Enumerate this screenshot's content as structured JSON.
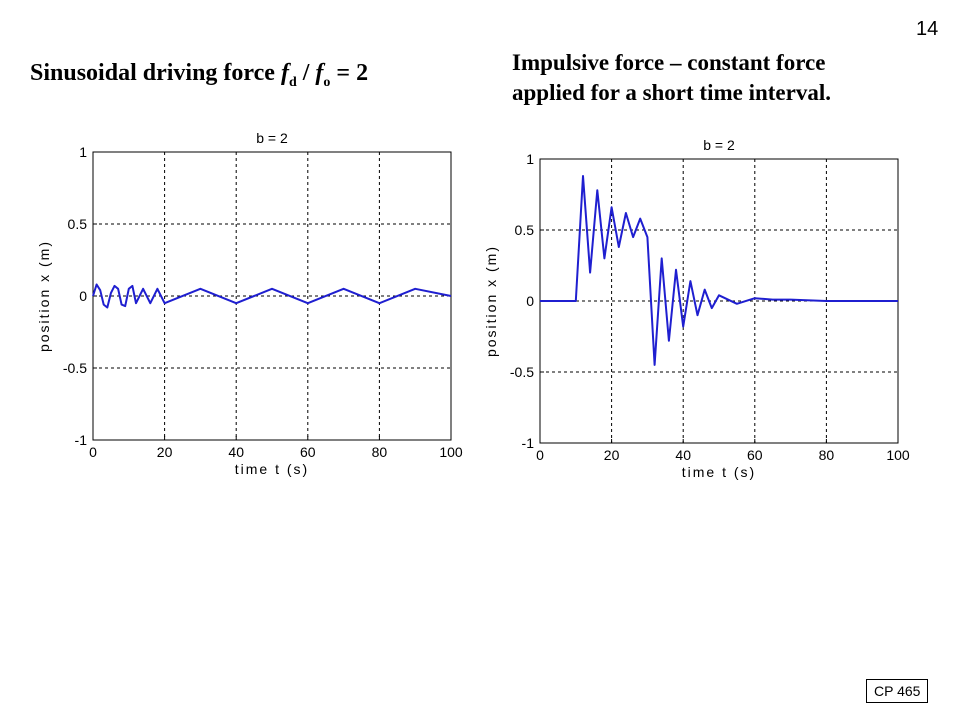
{
  "page": {
    "number": "14",
    "footer_tag": "CP 465"
  },
  "headings": {
    "left": {
      "text": "Sinusoidal driving force ",
      "f_symbol": "f",
      "d_sub": "d",
      "slash": " / ",
      "o_sub": "o",
      "suffix": " = 2"
    },
    "right": {
      "line1": "Impulsive force – constant force",
      "line2": "applied for a short time interval."
    }
  },
  "chart_data": [
    {
      "type": "line",
      "title": "b = 2",
      "xlabel": "time t (s)",
      "ylabel": "position x (m)",
      "xlim": [
        0,
        100
      ],
      "ylim": [
        -1,
        1
      ],
      "xticks": [
        "0",
        "20",
        "40",
        "60",
        "80",
        "100"
      ],
      "yticks": [
        "-1",
        "-0.5",
        "0",
        "0.5",
        "1"
      ],
      "grid": true,
      "series": [
        {
          "color": "#1f1fd0",
          "description": "small steady oscillation about zero",
          "x": [
            0,
            1,
            2,
            3,
            4,
            5,
            6,
            7,
            8,
            9,
            10,
            11,
            12,
            14,
            16,
            18,
            20,
            30,
            40,
            50,
            60,
            70,
            80,
            90,
            100
          ],
          "y": [
            0,
            0.08,
            0.04,
            -0.06,
            -0.08,
            0.02,
            0.07,
            0.05,
            -0.06,
            -0.07,
            0.05,
            0.07,
            -0.05,
            0.05,
            -0.05,
            0.05,
            -0.05,
            0.05,
            -0.05,
            0.05,
            -0.05,
            0.05,
            -0.05,
            0.05,
            0
          ]
        }
      ]
    },
    {
      "type": "line",
      "title": "b = 2",
      "xlabel": "time t (s)",
      "ylabel": "position x (m)",
      "xlim": [
        0,
        100
      ],
      "ylim": [
        -1,
        1
      ],
      "xticks": [
        "0",
        "20",
        "40",
        "60",
        "80",
        "100"
      ],
      "yticks": [
        "-1",
        "-0.5",
        "0",
        "0.5",
        "1"
      ],
      "grid": true,
      "series": [
        {
          "color": "#1f1fd0",
          "description": "response to a constant force applied between about t=10 s and t=30 s, then decaying oscillation",
          "x": [
            0,
            10,
            12,
            14,
            16,
            18,
            20,
            22,
            24,
            26,
            28,
            30,
            32,
            34,
            36,
            38,
            40,
            42,
            44,
            46,
            48,
            50,
            55,
            60,
            65,
            70,
            80,
            100
          ],
          "y": [
            0,
            0,
            0.88,
            0.2,
            0.78,
            0.3,
            0.66,
            0.38,
            0.62,
            0.45,
            0.58,
            0.45,
            -0.45,
            0.3,
            -0.28,
            0.22,
            -0.18,
            0.14,
            -0.1,
            0.08,
            -0.05,
            0.04,
            -0.02,
            0.02,
            0.01,
            0.01,
            0,
            0
          ]
        }
      ]
    }
  ]
}
